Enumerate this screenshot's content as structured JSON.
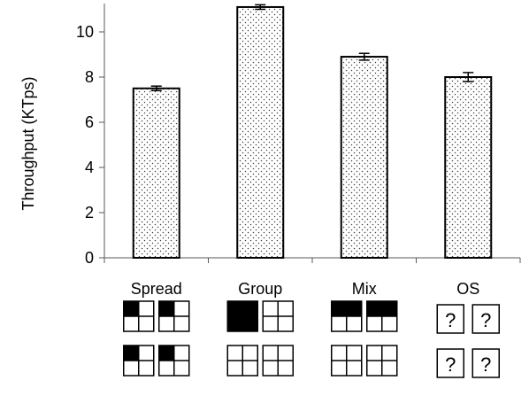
{
  "chart_data": {
    "type": "bar",
    "categories": [
      "Spread",
      "Group",
      "Mix",
      "OS"
    ],
    "values": [
      7.5,
      11.1,
      8.9,
      8.0
    ],
    "errors": [
      0.1,
      0.1,
      0.15,
      0.2
    ],
    "ylabel": "Throughput (KTps)",
    "ylim": [
      0,
      11.2
    ],
    "yticks": [
      0,
      2,
      4,
      6,
      8,
      10
    ],
    "grid": false,
    "bar_fill": "dotted",
    "bar_color": "#ffffff",
    "dot_color": "#404040",
    "edge_color": "#000000"
  },
  "core_diagrams": [
    {
      "category": "Spread",
      "kind": "grid",
      "boxes": [
        [
          0
        ],
        [
          0
        ],
        [
          0
        ],
        [
          0
        ]
      ]
    },
    {
      "category": "Group",
      "kind": "grid",
      "boxes": [
        [
          0,
          1,
          2,
          3
        ],
        [],
        [],
        []
      ]
    },
    {
      "category": "Mix",
      "kind": "grid",
      "boxes": [
        [
          0,
          1
        ],
        [
          0,
          1
        ],
        [],
        []
      ]
    },
    {
      "category": "OS",
      "kind": "question",
      "symbol": "?"
    }
  ]
}
